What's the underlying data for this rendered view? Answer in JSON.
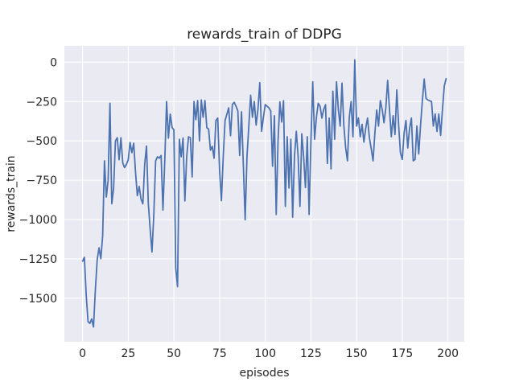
{
  "chart_data": {
    "type": "line",
    "title": "rewards_train of DDPG",
    "xlabel": "episodes",
    "ylabel": "rewards_train",
    "x_ticks": [
      0,
      25,
      50,
      75,
      100,
      125,
      150,
      175,
      200
    ],
    "y_ticks": [
      0,
      -250,
      -500,
      -750,
      -1000,
      -1250,
      -1500
    ],
    "xlim": [
      -9.95,
      208.95
    ],
    "ylim": [
      -1777,
      104
    ],
    "grid": true,
    "legend_position": "none",
    "line_color": "#4c72b0",
    "plot_bg_color": "#eaeaf2",
    "grid_color": "#ffffff",
    "text_color": "#262626",
    "x_description": "episode index, one point per episode starting at 0",
    "x_start": 0,
    "x_step": 1,
    "values": [
      -1265,
      -1240,
      -1480,
      -1649,
      -1660,
      -1632,
      -1683,
      -1450,
      -1257,
      -1180,
      -1249,
      -1104,
      -627,
      -857,
      -750,
      -261,
      -900,
      -800,
      -500,
      -480,
      -620,
      -480,
      -640,
      -670,
      -650,
      -620,
      -510,
      -575,
      -515,
      -700,
      -848,
      -790,
      -870,
      -900,
      -650,
      -533,
      -900,
      -1060,
      -1206,
      -970,
      -627,
      -601,
      -610,
      -593,
      -940,
      -627,
      -250,
      -482,
      -330,
      -415,
      -430,
      -1308,
      -1427,
      -490,
      -601,
      -482,
      -882,
      -600,
      -474,
      -480,
      -729,
      -250,
      -365,
      -244,
      -500,
      -240,
      -350,
      -244,
      -416,
      -425,
      -559,
      -535,
      -610,
      -371,
      -355,
      -687,
      -880,
      -600,
      -371,
      -330,
      -290,
      -467,
      -269,
      -255,
      -280,
      -310,
      -593,
      -315,
      -650,
      -1002,
      -600,
      -406,
      -210,
      -350,
      -250,
      -400,
      -300,
      -130,
      -439,
      -350,
      -269,
      -280,
      -290,
      -310,
      -661,
      -340,
      -968,
      -500,
      -252,
      -380,
      -245,
      -917,
      -474,
      -800,
      -490,
      -985,
      -600,
      -439,
      -600,
      -917,
      -455,
      -600,
      -797,
      -474,
      -968,
      -500,
      -125,
      -490,
      -350,
      -261,
      -280,
      -355,
      -300,
      -270,
      -644,
      -355,
      -678,
      -184,
      -490,
      -125,
      -300,
      -406,
      -133,
      -400,
      -542,
      -627,
      -350,
      -250,
      -474,
      15,
      -406,
      -355,
      -474,
      -395,
      -508,
      -420,
      -355,
      -480,
      -550,
      -627,
      -450,
      -304,
      -406,
      -244,
      -300,
      -385,
      -290,
      -116,
      -300,
      -474,
      -340,
      -460,
      -176,
      -400,
      -576,
      -618,
      -450,
      -370,
      -545,
      -420,
      -355,
      -627,
      -618,
      -406,
      -583,
      -400,
      -244,
      -107,
      -230,
      -240,
      -245,
      -250,
      -406,
      -329,
      -440,
      -329,
      -465,
      -300,
      -150,
      -105
    ]
  }
}
